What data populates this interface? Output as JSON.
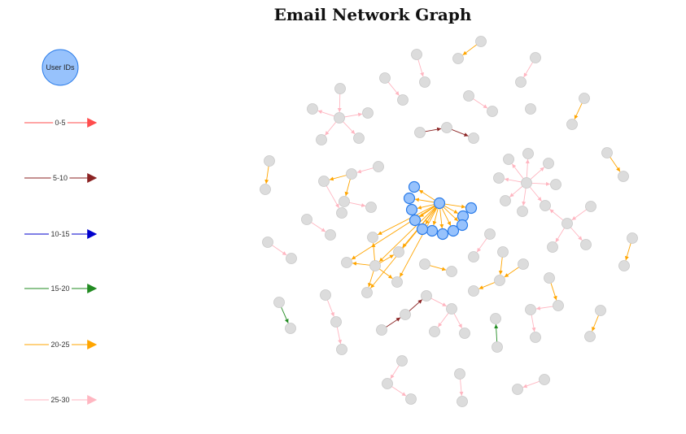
{
  "title": "Email Network Graph",
  "legend": {
    "node_label": "User IDs",
    "node_color": "#97c2fc",
    "items": [
      {
        "label": "0-5",
        "color": "#ff4d4d"
      },
      {
        "label": "5-10",
        "color": "#8b2323"
      },
      {
        "label": "10-15",
        "color": "#0000cd"
      },
      {
        "label": "15-20",
        "color": "#228b22"
      },
      {
        "label": "20-25",
        "color": "#ffa500"
      },
      {
        "label": "25-30",
        "color": "#ffb6c1"
      }
    ]
  },
  "colors": {
    "node_default": "#dcdcdc",
    "node_highlight": "#97c2fc",
    "node_highlight_border": "#2b7ce9"
  }
}
